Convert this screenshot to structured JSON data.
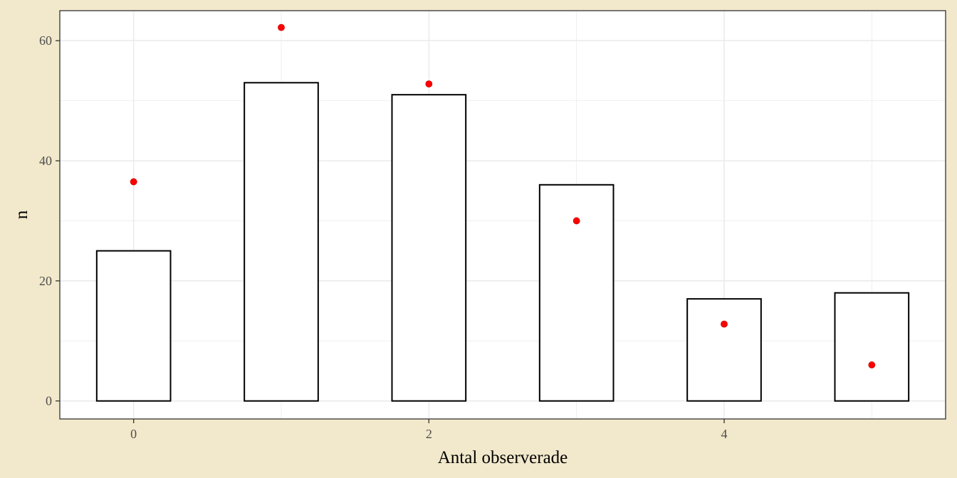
{
  "colors": {
    "page_background": "#f2e8cb",
    "panel_background": "#ffffff",
    "grid": "#ebebeb",
    "bar_outline": "#000000",
    "bar_fill": "#ffffff",
    "point": "#ff0000"
  },
  "chart_data": {
    "type": "bar",
    "title": "",
    "xlabel": "Antal observerade",
    "ylabel": "n",
    "x": [
      0,
      1,
      2,
      3,
      4,
      5
    ],
    "series": [
      {
        "kind": "bar",
        "values": [
          25,
          53,
          51,
          36,
          17,
          18
        ]
      },
      {
        "kind": "point",
        "values": [
          36.5,
          62.2,
          52.8,
          30,
          12.8,
          6
        ]
      }
    ],
    "xlim": [
      -0.5,
      5.5
    ],
    "ylim": [
      -3,
      65
    ],
    "x_ticks": [
      0,
      2,
      4
    ],
    "x_tick_labels": [
      "0",
      "2",
      "4"
    ],
    "y_ticks": [
      0,
      20,
      40,
      60
    ],
    "y_tick_labels": [
      "0",
      "20",
      "40",
      "60"
    ],
    "grid": true,
    "legend": "none"
  }
}
